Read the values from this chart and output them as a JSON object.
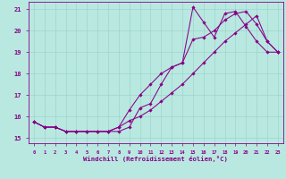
{
  "xlabel": "Windchill (Refroidissement éolien,°C)",
  "xlim": [
    -0.5,
    23.5
  ],
  "ylim": [
    14.75,
    21.35
  ],
  "yticks": [
    15,
    16,
    17,
    18,
    19,
    20,
    21
  ],
  "xticks": [
    0,
    1,
    2,
    3,
    4,
    5,
    6,
    7,
    8,
    9,
    10,
    11,
    12,
    13,
    14,
    15,
    16,
    17,
    18,
    19,
    20,
    21,
    22,
    23
  ],
  "bg_color": "#b8e8e0",
  "grid_color": "#99d0ca",
  "line_color": "#880088",
  "line1_x": [
    0,
    1,
    2,
    3,
    4,
    5,
    6,
    7,
    8,
    9,
    10,
    11,
    12,
    13,
    14,
    15,
    16,
    17,
    18,
    19,
    20,
    21,
    22,
    23
  ],
  "line1_y": [
    15.75,
    15.5,
    15.5,
    15.3,
    15.3,
    15.3,
    15.3,
    15.3,
    15.3,
    15.5,
    16.4,
    16.6,
    17.5,
    18.3,
    18.5,
    21.1,
    20.4,
    19.7,
    20.8,
    20.9,
    20.2,
    19.5,
    19.0,
    19.0
  ],
  "line2_x": [
    0,
    1,
    2,
    3,
    4,
    5,
    6,
    7,
    8,
    9,
    10,
    11,
    12,
    13,
    14,
    15,
    16,
    17,
    18,
    19,
    20,
    21,
    22,
    23
  ],
  "line2_y": [
    15.75,
    15.5,
    15.5,
    15.3,
    15.3,
    15.3,
    15.3,
    15.3,
    15.5,
    16.3,
    17.0,
    17.5,
    18.0,
    18.3,
    18.5,
    19.6,
    19.7,
    20.0,
    20.5,
    20.8,
    20.9,
    20.3,
    19.5,
    19.0
  ],
  "line3_x": [
    0,
    1,
    2,
    3,
    4,
    5,
    6,
    7,
    8,
    9,
    10,
    11,
    12,
    13,
    14,
    15,
    16,
    17,
    18,
    19,
    20,
    21,
    22,
    23
  ],
  "line3_y": [
    15.75,
    15.5,
    15.5,
    15.3,
    15.3,
    15.3,
    15.3,
    15.3,
    15.5,
    15.8,
    16.0,
    16.3,
    16.7,
    17.1,
    17.5,
    18.0,
    18.5,
    19.0,
    19.5,
    19.9,
    20.3,
    20.7,
    19.5,
    19.0
  ]
}
